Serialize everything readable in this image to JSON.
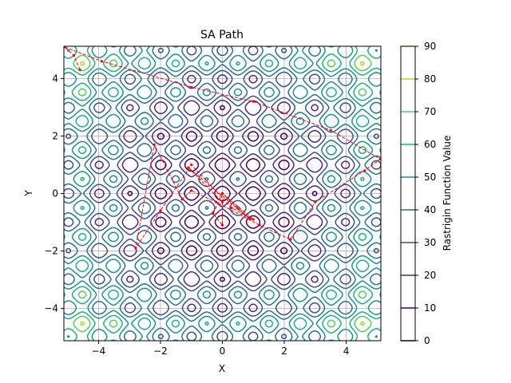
{
  "chart_data": {
    "type": "contour",
    "title": "SA Path",
    "xlabel": "X",
    "ylabel": "Y",
    "xlim": [
      -5.12,
      5.12
    ],
    "ylim": [
      -5.12,
      5.12
    ],
    "xticks": [
      -4,
      -2,
      0,
      2,
      4
    ],
    "yticks": [
      -4,
      -2,
      0,
      2,
      4
    ],
    "grid": true,
    "function": "Rastrigin",
    "colorbar": {
      "label": "Rastrigin Function Value",
      "ticks": [
        0,
        10,
        20,
        30,
        40,
        50,
        60,
        70,
        80,
        90
      ],
      "colors": [
        "#440154",
        "#472c7a",
        "#3b518b",
        "#2c718e",
        "#21908d",
        "#27ad81",
        "#5cc863",
        "#aadc32",
        "#fde725"
      ]
    },
    "contour_levels": [
      10,
      20,
      30,
      40,
      50,
      60,
      70,
      80
    ],
    "path_color": "#ff0000",
    "path": [
      [
        -4.6,
        4.3
      ],
      [
        -4.8,
        4.8
      ],
      [
        -5.1,
        5.1
      ],
      [
        -3.9,
        4.6
      ],
      [
        -1.0,
        3.7
      ],
      [
        1.0,
        3.2
      ],
      [
        3.5,
        2.2
      ],
      [
        5.1,
        1.2
      ],
      [
        4.6,
        0.8
      ],
      [
        3.0,
        -0.3
      ],
      [
        2.2,
        -1.6
      ],
      [
        1.2,
        -1.1
      ],
      [
        -0.2,
        -0.3
      ],
      [
        -1.0,
        0.1
      ],
      [
        -1.3,
        -0.2
      ],
      [
        -2.2,
        1.7
      ],
      [
        -2.8,
        -1.9
      ],
      [
        -2.0,
        -0.6
      ],
      [
        -1.0,
        1.0
      ],
      [
        0.3,
        -0.5
      ],
      [
        1.0,
        -0.9
      ],
      [
        0.0,
        0.0
      ],
      [
        0.9,
        -0.9
      ],
      [
        -1.1,
        0.9
      ],
      [
        0.0,
        -0.3
      ],
      [
        0.0,
        -1.1
      ],
      [
        -0.3,
        -0.7
      ],
      [
        0.0,
        0.0
      ]
    ]
  }
}
